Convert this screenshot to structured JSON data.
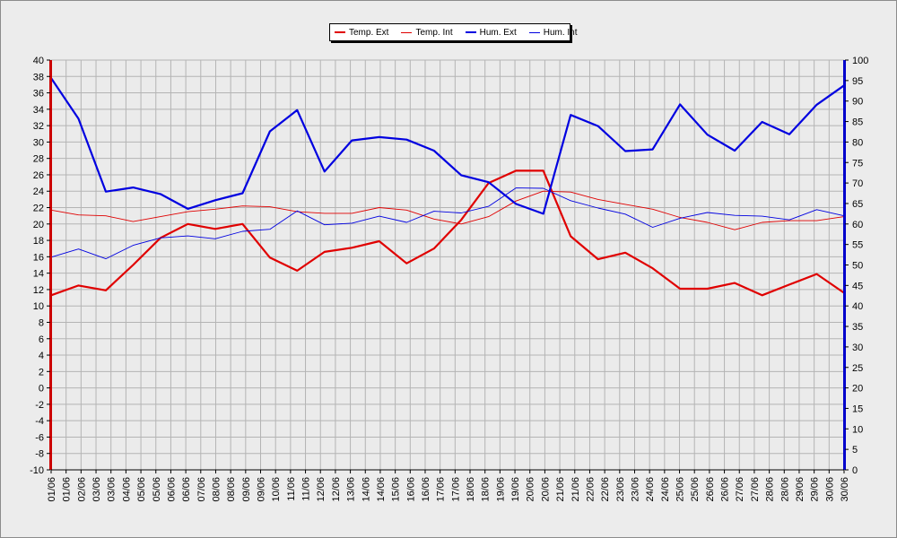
{
  "chart_data": {
    "type": "line",
    "title": "",
    "categories": [
      "01/06",
      "01/06",
      "02/06",
      "03/06",
      "03/06",
      "04/06",
      "05/06",
      "05/06",
      "06/06",
      "06/06",
      "07/06",
      "08/06",
      "08/06",
      "09/06",
      "09/06",
      "10/06",
      "11/06",
      "11/06",
      "12/06",
      "12/06",
      "13/06",
      "14/06",
      "14/06",
      "15/06",
      "16/06",
      "16/06",
      "17/06",
      "17/06",
      "18/06",
      "18/06",
      "19/06",
      "19/06",
      "20/06",
      "20/06",
      "21/06",
      "21/06",
      "22/06",
      "22/06",
      "23/06",
      "23/06",
      "24/06",
      "24/06",
      "25/06",
      "25/06",
      "26/06",
      "26/06",
      "27/06",
      "27/06",
      "28/06",
      "28/06",
      "29/06",
      "29/06",
      "30/06",
      "30/06"
    ],
    "x": [
      "01/06",
      "02/06",
      "03/06",
      "04/06",
      "05/06",
      "06/06",
      "07/06",
      "08/06",
      "09/06",
      "10/06",
      "11/06",
      "12/06",
      "13/06",
      "14/06",
      "15/06",
      "16/06",
      "17/06",
      "18/06",
      "19/06",
      "20/06",
      "21/06",
      "22/06",
      "23/06",
      "24/06",
      "25/06",
      "26/06",
      "27/06",
      "28/06",
      "29/06",
      "30/06"
    ],
    "y_left": {
      "ylim": [
        -10,
        40
      ],
      "ticks": [
        -10,
        -8,
        -6,
        -4,
        -2,
        0,
        2,
        4,
        6,
        8,
        10,
        12,
        14,
        16,
        18,
        20,
        22,
        24,
        26,
        28,
        30,
        32,
        34,
        36,
        38,
        40
      ],
      "color": "#cc0000"
    },
    "y_right": {
      "ylim": [
        0,
        100
      ],
      "ticks": [
        0,
        5,
        10,
        15,
        20,
        25,
        30,
        35,
        40,
        45,
        50,
        55,
        60,
        65,
        70,
        75,
        80,
        85,
        90,
        95,
        100
      ],
      "color": "#0000cc"
    },
    "grid": true,
    "legend_position": "top-center",
    "series": [
      {
        "name": "Temp. Ext",
        "axis": "left",
        "color": "#e00000",
        "width": 2.2,
        "values": [
          11.3,
          12.5,
          11.9,
          15.0,
          18.3,
          20.0,
          19.4,
          20.0,
          15.9,
          14.3,
          16.6,
          17.1,
          17.9,
          15.2,
          17.0,
          20.5,
          25.0,
          26.5,
          26.5,
          18.5,
          15.7,
          16.5,
          14.6,
          12.1,
          12.1,
          12.8,
          11.3,
          12.6,
          13.9,
          11.6
        ]
      },
      {
        "name": "Temp. Int",
        "axis": "left",
        "color": "#e00000",
        "width": 0.9,
        "values": [
          21.7,
          21.1,
          21.0,
          20.3,
          20.9,
          21.5,
          21.8,
          22.2,
          22.1,
          21.5,
          21.3,
          21.3,
          22.0,
          21.7,
          20.6,
          20.0,
          20.9,
          22.8,
          24.0,
          23.9,
          23.0,
          22.4,
          21.8,
          20.8,
          20.2,
          19.3,
          20.2,
          20.4,
          20.4,
          20.9
        ]
      },
      {
        "name": "Hum. Ext",
        "axis": "right",
        "color": "#0000e0",
        "width": 2.2,
        "values": [
          95.6,
          85.7,
          67.9,
          68.9,
          67.3,
          63.7,
          65.8,
          67.5,
          82.6,
          87.8,
          72.8,
          80.4,
          81.2,
          80.6,
          77.9,
          71.9,
          70.2,
          64.9,
          62.5,
          86.6,
          83.9,
          77.8,
          78.2,
          89.2,
          81.8,
          77.9,
          84.9,
          81.9,
          89.1,
          93.8
        ]
      },
      {
        "name": "Hum. Int",
        "axis": "right",
        "color": "#0000e0",
        "width": 0.9,
        "values": [
          51.9,
          53.9,
          51.5,
          54.8,
          56.6,
          57.1,
          56.4,
          58.2,
          58.7,
          63.2,
          59.8,
          60.2,
          61.9,
          60.4,
          63.1,
          62.7,
          64.3,
          68.8,
          68.7,
          65.7,
          63.9,
          62.4,
          59.2,
          61.4,
          62.8,
          62.1,
          61.9,
          61.0,
          63.5,
          62.0
        ]
      }
    ]
  }
}
